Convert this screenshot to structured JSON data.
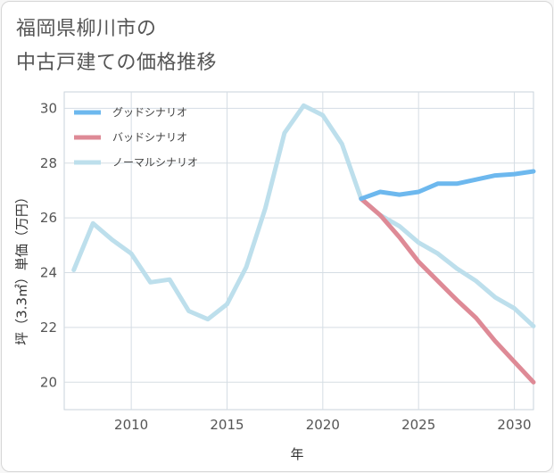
{
  "title": {
    "line1": "福岡県柳川市の",
    "line2": "中古戸建ての価格推移"
  },
  "chart_data": {
    "type": "line",
    "xlabel": "年",
    "ylabel": "坪（3.3㎡）単価（万円）",
    "xlim": [
      2006.5,
      2031
    ],
    "ylim": [
      19.0,
      30.6
    ],
    "xticks": [
      2010,
      2015,
      2020,
      2025,
      2030
    ],
    "yticks": [
      20,
      22,
      24,
      26,
      28,
      30
    ],
    "grid": true,
    "legend_position": "top-left",
    "series": [
      {
        "name": "グッドシナリオ",
        "color": "#6db8ee",
        "x": [
          2022,
          2023,
          2024,
          2025,
          2026,
          2027,
          2028,
          2029,
          2030,
          2031
        ],
        "values": [
          26.7,
          26.95,
          26.85,
          26.95,
          27.25,
          27.25,
          27.4,
          27.55,
          27.6,
          27.7
        ]
      },
      {
        "name": "バッドシナリオ",
        "color": "#de8a96",
        "x": [
          2022,
          2023,
          2024,
          2025,
          2026,
          2027,
          2028,
          2029,
          2030,
          2031
        ],
        "values": [
          26.7,
          26.1,
          25.3,
          24.4,
          23.7,
          23.0,
          22.35,
          21.5,
          20.75,
          20.0
        ]
      },
      {
        "name": "ノーマルシナリオ",
        "color": "#bddfec",
        "x": [
          2007,
          2008,
          2009,
          2010,
          2011,
          2012,
          2013,
          2014,
          2015,
          2016,
          2017,
          2018,
          2019,
          2020,
          2021,
          2022,
          2023,
          2024,
          2025,
          2026,
          2027,
          2028,
          2029,
          2030,
          2031
        ],
        "values": [
          24.1,
          25.8,
          25.2,
          24.7,
          23.65,
          23.75,
          22.6,
          22.3,
          22.85,
          24.2,
          26.35,
          29.1,
          30.1,
          29.75,
          28.7,
          26.7,
          26.1,
          25.7,
          25.1,
          24.7,
          24.15,
          23.7,
          23.1,
          22.7,
          22.05
        ]
      }
    ]
  }
}
